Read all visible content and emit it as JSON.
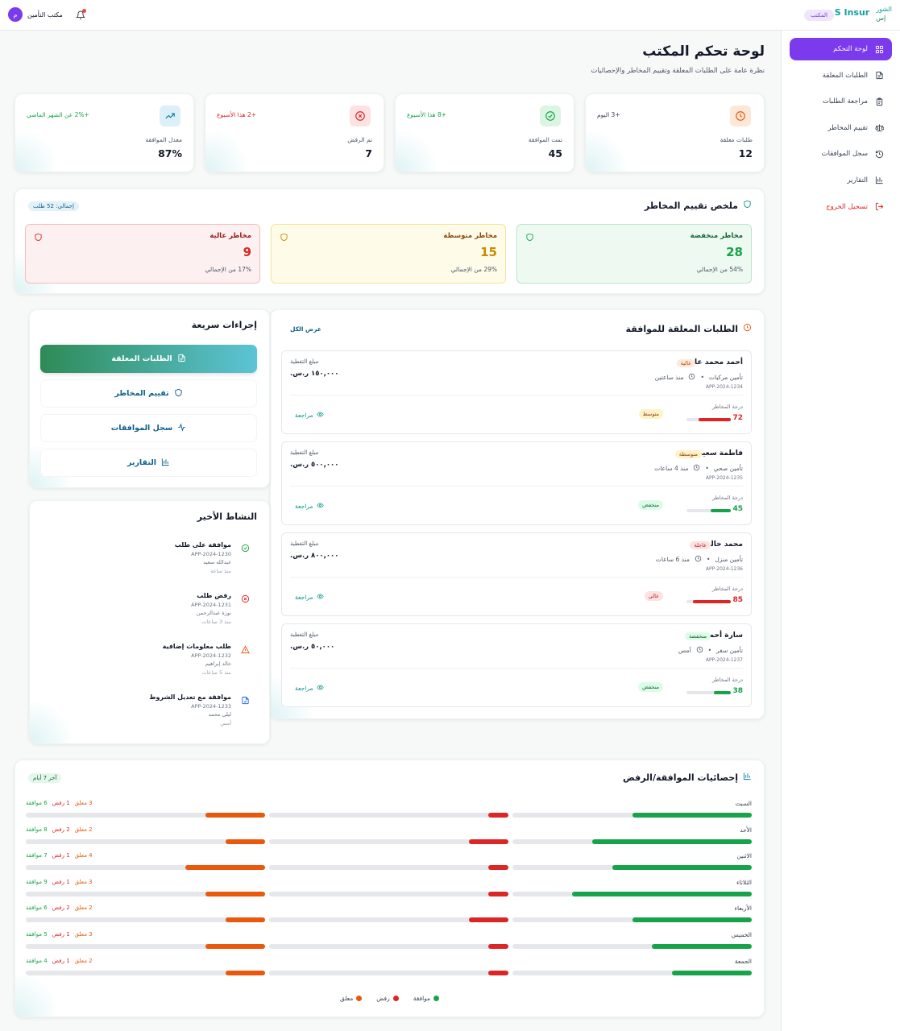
{
  "topbar": {
    "brand_name": "S Insur",
    "brand_ar_top": "الشور",
    "brand_ar_bottom": "إس",
    "role_badge": "المكتب",
    "user_initial": "م",
    "user_name": "مكتب التأمين"
  },
  "sidebar": {
    "items": [
      {
        "label": "لوحة التحكم",
        "icon": "grid-icon",
        "active": true
      },
      {
        "label": "الطلبات المعلقة",
        "icon": "document-icon"
      },
      {
        "label": "مراجعة الطلبات",
        "icon": "clipboard-icon"
      },
      {
        "label": "تقييم المخاطر",
        "icon": "scale-icon"
      },
      {
        "label": "سجل الموافقات",
        "icon": "history-icon"
      },
      {
        "label": "التقارير",
        "icon": "bar-chart-icon"
      }
    ],
    "logout": "تسجيل الخروج"
  },
  "page": {
    "title": "لوحة تحكم المكتب",
    "subtitle": "نظرة عامة على الطلبات المعلقة وتقييم المخاطر والإحصائيات"
  },
  "stats": [
    {
      "label": "طلبات معلقة",
      "value": "12",
      "trend": "+3 اليوم",
      "icon": "clock-icon",
      "color": "#ea580c"
    },
    {
      "label": "تمت الموافقة",
      "value": "45",
      "trend": "+8 هذا الأسبوع",
      "icon": "check-circle-icon",
      "color": "#16a34a"
    },
    {
      "label": "تم الرفض",
      "value": "7",
      "trend": "+2 هذا الأسبوع",
      "icon": "x-circle-icon",
      "color": "#dc2626"
    },
    {
      "label": "معدل الموافقة",
      "value": "87%",
      "trend": "+2% عن الشهر الماضي",
      "icon": "trending-up-icon",
      "color": "#0f7ea8"
    }
  ],
  "risk_summary": {
    "title": "ملخص تقييم المخاطر",
    "total": "إجمالي: 52 طلب",
    "boxes": [
      {
        "title": "مخاطر منخفضة",
        "value": "28",
        "pct": "54% من الإجمالي"
      },
      {
        "title": "مخاطر متوسطة",
        "value": "15",
        "pct": "29% من الإجمالي"
      },
      {
        "title": "مخاطر عالية",
        "value": "9",
        "pct": "17% من الإجمالي"
      }
    ]
  },
  "pending": {
    "title": "الطلبات المعلقة للموافقة",
    "view_all": "عرض الكل",
    "coverage_label": "مبلغ التغطية",
    "score_label": "درجة المخاطر",
    "review_label": "مراجعة",
    "requests": [
      {
        "name": "أحمد محمد علي",
        "priority": "عالية",
        "type": "تأمين مركبات",
        "time": "منذ ساعتين",
        "id": "APP-2024-1234",
        "coverage": "١٥٠,٠٠٠ ر.س.",
        "risk": "متوسط",
        "score": 72
      },
      {
        "name": "فاطمة سعيد",
        "priority": "متوسطة",
        "type": "تأمين صحي",
        "time": "منذ 4 ساعات",
        "id": "APP-2024-1235",
        "coverage": "٥٠٠,٠٠٠ ر.س.",
        "risk": "منخفض",
        "score": 45
      },
      {
        "name": "محمد خالد",
        "priority": "عاجلة",
        "type": "تأمين منزل",
        "time": "منذ 6 ساعات",
        "id": "APP-2024-1236",
        "coverage": "٨٠٠,٠٠٠ ر.س.",
        "risk": "عالي",
        "score": 85
      },
      {
        "name": "سارة أحمد",
        "priority": "منخفضة",
        "type": "تأمين سفر",
        "time": "أمس",
        "id": "APP-2024-1237",
        "coverage": "٥٠,٠٠٠ ر.س.",
        "risk": "منخفض",
        "score": 38
      }
    ]
  },
  "quick_actions": {
    "title": "إجراءات سريعة",
    "items": [
      {
        "label": "الطلبات المعلقة",
        "icon": "document-icon"
      },
      {
        "label": "تقييم المخاطر",
        "icon": "shield-icon"
      },
      {
        "label": "سجل الموافقات",
        "icon": "activity-icon"
      },
      {
        "label": "التقارير",
        "icon": "bar-chart-icon"
      }
    ]
  },
  "activity": {
    "title": "النشاط الأخير",
    "items": [
      {
        "title": "موافقة على طلب",
        "id": "APP-2024-1230",
        "person": "عبدالله سعيد",
        "time": "منذ ساعة",
        "icon": "check-circle-icon"
      },
      {
        "title": "رفض طلب",
        "id": "APP-2024-1231",
        "person": "نورة عبدالرحمن",
        "time": "منذ 3 ساعات",
        "icon": "x-circle-icon"
      },
      {
        "title": "طلب معلومات إضافية",
        "id": "APP-2024-1232",
        "person": "خالد إبراهيم",
        "time": "منذ 5 ساعات",
        "icon": "alert-triangle-icon"
      },
      {
        "title": "موافقة مع تعديل الشروط",
        "id": "APP-2024-1233",
        "person": "ليلى محمد",
        "time": "أمس",
        "icon": "file-edit-icon"
      }
    ]
  },
  "weekly": {
    "title": "إحصائيات الموافقة/الرفض",
    "period": "آخر 7 أيام",
    "approve_word": "موافقة",
    "reject_word": "رفض",
    "pending_word": "معلق",
    "legend": [
      "موافقة",
      "رفض",
      "معلق"
    ],
    "days": [
      {
        "day": "السبت",
        "approved": 6,
        "rejected": 1,
        "pending": 3
      },
      {
        "day": "الأحد",
        "approved": 8,
        "rejected": 2,
        "pending": 2
      },
      {
        "day": "الاثنين",
        "approved": 7,
        "rejected": 1,
        "pending": 4
      },
      {
        "day": "الثلاثاء",
        "approved": 9,
        "rejected": 1,
        "pending": 3
      },
      {
        "day": "الأربعاء",
        "approved": 6,
        "rejected": 2,
        "pending": 2
      },
      {
        "day": "الخميس",
        "approved": 5,
        "rejected": 1,
        "pending": 3
      },
      {
        "day": "الجمعة",
        "approved": 4,
        "rejected": 1,
        "pending": 2
      }
    ],
    "scale_max": 12
  }
}
